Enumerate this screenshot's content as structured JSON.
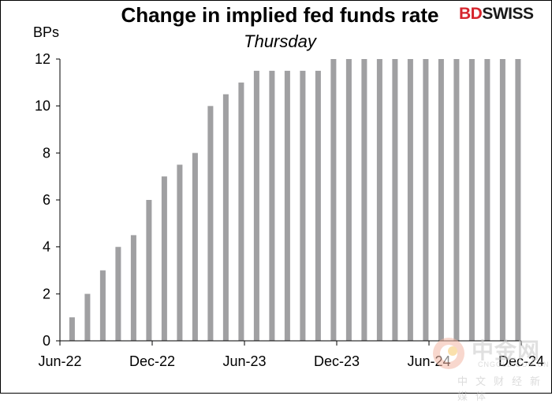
{
  "chart_data": {
    "type": "bar",
    "title": "Change in implied fed funds rate",
    "subtitle": "Thursday",
    "ylabel": "BPs",
    "xlabel": "",
    "ylim": [
      0,
      12
    ],
    "yticks": [
      0,
      2,
      4,
      6,
      8,
      10,
      12
    ],
    "xticks": [
      "Jun-22",
      "Dec-22",
      "Jun-23",
      "Dec-23",
      "Jun-24",
      "Dec-24"
    ],
    "categories": [
      "Jul-22",
      "Aug-22",
      "Sep-22",
      "Oct-22",
      "Nov-22",
      "Dec-22",
      "Jan-23",
      "Feb-23",
      "Mar-23",
      "Apr-23",
      "May-23",
      "Jun-23",
      "Jul-23",
      "Aug-23",
      "Sep-23",
      "Oct-23",
      "Nov-23",
      "Dec-23",
      "Jan-24",
      "Feb-24",
      "Mar-24",
      "Apr-24",
      "May-24",
      "Jun-24",
      "Jul-24",
      "Aug-24",
      "Sep-24",
      "Oct-24",
      "Nov-24",
      "Dec-24"
    ],
    "values": [
      1,
      2,
      3,
      4,
      4.5,
      6,
      7,
      7.5,
      8,
      10,
      10.5,
      11,
      11.5,
      11.5,
      11.5,
      11.5,
      11.5,
      12,
      12,
      12,
      12,
      12,
      12,
      12,
      12,
      12,
      12,
      12,
      12,
      12
    ],
    "bar_color": "#a0a0a2",
    "grid": false,
    "legend": "none"
  },
  "branding": {
    "logo_bd": "BD",
    "logo_swiss": "SWISS",
    "logo_bd_color": "#d6262e"
  },
  "watermark": {
    "main": "中金网",
    "url": "CNGOLD.COM.CN",
    "cn": "中文财经新媒体"
  }
}
